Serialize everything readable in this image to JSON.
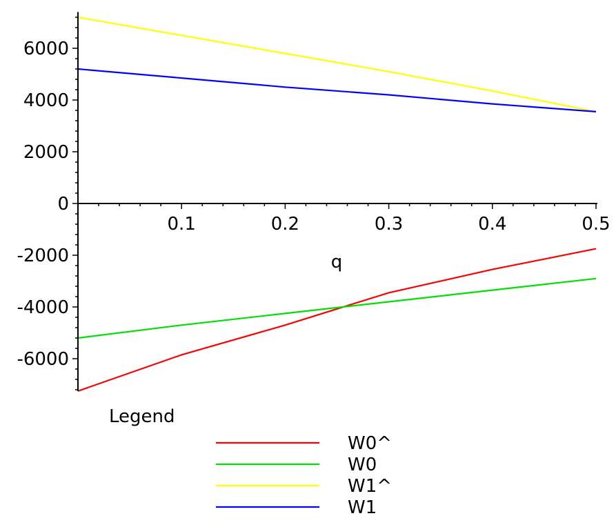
{
  "chart_data": {
    "type": "line",
    "title": "",
    "xlabel": "q",
    "ylabel": "",
    "xlim": [
      0,
      0.5
    ],
    "ylim": [
      -7250,
      7400
    ],
    "x_ticks": [
      0.1,
      0.2,
      0.3,
      0.4,
      0.5
    ],
    "x_tick_labels": [
      "0.1",
      "0.2",
      "0.3",
      "0.4",
      "0.5"
    ],
    "y_ticks": [
      6000,
      4000,
      2000,
      0,
      -2000,
      -4000,
      -6000
    ],
    "y_tick_labels": [
      "6000",
      "4000",
      "2000",
      "0",
      "-2000",
      "-4000",
      "-6000"
    ],
    "grid": false,
    "legend_title": "Legend",
    "legend_position": "bottom",
    "series": [
      {
        "name": "W0^",
        "color": "#ff0000",
        "x": [
          0,
          0.1,
          0.2,
          0.3,
          0.4,
          0.5
        ],
        "y": [
          -7250,
          -5850,
          -4700,
          -3450,
          -2550,
          -1750
        ]
      },
      {
        "name": "W0",
        "color": "#00e000",
        "x": [
          0,
          0.1,
          0.2,
          0.3,
          0.4,
          0.5
        ],
        "y": [
          -5200,
          -4700,
          -4250,
          -3800,
          -3350,
          -2900
        ]
      },
      {
        "name": "W1^",
        "color": "#ffff00",
        "x": [
          0,
          0.1,
          0.2,
          0.3,
          0.4,
          0.5
        ],
        "y": [
          7200,
          6500,
          5800,
          5100,
          4350,
          3550
        ]
      },
      {
        "name": "W1",
        "color": "#0000ff",
        "x": [
          0,
          0.1,
          0.2,
          0.3,
          0.4,
          0.5
        ],
        "y": [
          5200,
          4850,
          4500,
          4200,
          3850,
          3550
        ]
      }
    ]
  }
}
